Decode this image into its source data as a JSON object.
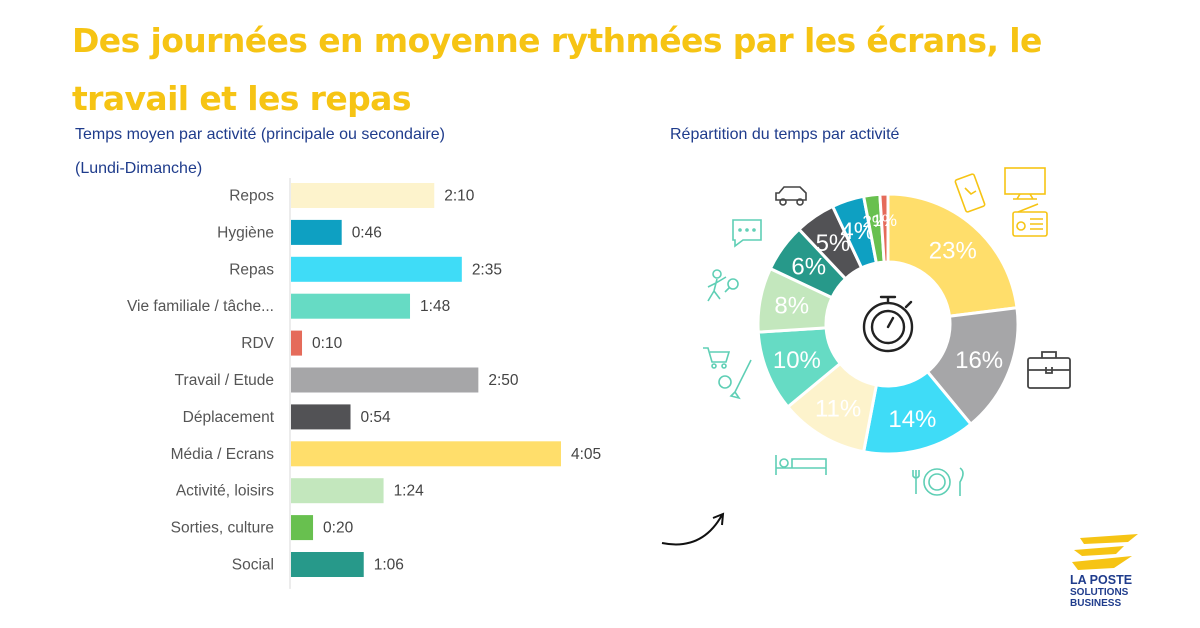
{
  "title": "Des journées en moyenne rythmées par les écrans, le travail et les repas",
  "bar_chart_title_line1": "Temps moyen par activité (principale ou secondaire)",
  "bar_chart_title_line2": "(Lundi-Dimanche)",
  "pie_chart_title": "Répartition du temps par activité",
  "logo": {
    "line1": "LA POSTE",
    "line2": "SOLUTIONS",
    "line3": "BUSINESS"
  },
  "colors": {
    "title": "#f6c414",
    "subtitle": "#1f3c8c",
    "icon": "#5fcfb5",
    "Repos": "#fdf3cc",
    "Hygiène": "#0ea0c2",
    "Repas": "#3fdcf7",
    "Vie familiale / tâche...": "#66dbc4",
    "RDV": "#e56b5a",
    "Travail / Etude": "#a6a6a8",
    "Déplacement": "#525255",
    "Média / Ecrans": "#ffde6b",
    "Activité, loisirs": "#c3e7bd",
    "Sorties, culture": "#68c04f",
    "Social": "#27998a"
  },
  "chart_data": [
    {
      "type": "bar",
      "orientation": "horizontal",
      "title": "Temps moyen par activité (principale ou secondaire)",
      "subtitle": "(Lundi-Dimanche)",
      "categories": [
        "Repos",
        "Hygiène",
        "Repas",
        "Vie familiale / tâche...",
        "RDV",
        "Travail / Etude",
        "Déplacement",
        "Média / Ecrans",
        "Activité, loisirs",
        "Sorties, culture",
        "Social"
      ],
      "values": [
        130,
        46,
        155,
        108,
        10,
        170,
        54,
        245,
        84,
        20,
        66
      ],
      "value_unit": "minutes",
      "data_labels": [
        "2:10",
        "0:46",
        "2:35",
        "1:48",
        "0:10",
        "2:50",
        "0:54",
        "4:05",
        "1:24",
        "0:20",
        "1:06"
      ],
      "grid": false
    },
    {
      "type": "pie",
      "variant": "donut",
      "title": "Répartition du temps par activité",
      "slices": [
        {
          "category": "Média / Ecrans",
          "value": 23,
          "label": "23%"
        },
        {
          "category": "Travail / Etude",
          "value": 16,
          "label": "16%"
        },
        {
          "category": "Repas",
          "value": 14,
          "label": "14%"
        },
        {
          "category": "Repos",
          "value": 11,
          "label": "11%"
        },
        {
          "category": "Vie familiale / tâche...",
          "value": 10,
          "label": "10%"
        },
        {
          "category": "Activité, loisirs",
          "value": 8,
          "label": "8%"
        },
        {
          "category": "Social",
          "value": 6,
          "label": "6%"
        },
        {
          "category": "Déplacement",
          "value": 5,
          "label": "5%"
        },
        {
          "category": "Hygiène",
          "value": 4,
          "label": "4%"
        },
        {
          "category": "Sorties, culture",
          "value": 2,
          "label": "2%"
        },
        {
          "category": "RDV",
          "value": 1,
          "label": "1%"
        }
      ],
      "start_angle_deg": 0,
      "direction": "clockwise"
    }
  ]
}
